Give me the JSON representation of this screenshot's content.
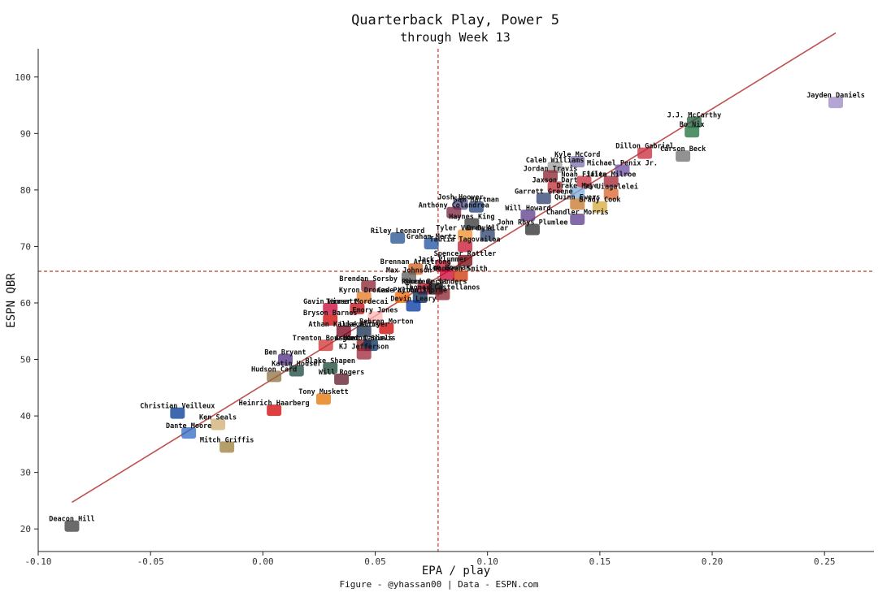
{
  "chart_data": {
    "type": "scatter",
    "title": "Quarterback Play, Power 5",
    "subtitle": "through Week 13",
    "xlabel": "EPA / play",
    "ylabel": "ESPN QBR",
    "caption": "Figure - @yhassan00 | Data - ESPN.com",
    "xlim": [
      -0.1,
      0.272
    ],
    "ylim": [
      16,
      105
    ],
    "xticks": [
      -0.1,
      -0.05,
      0.0,
      0.05,
      0.1,
      0.15,
      0.2,
      0.25
    ],
    "xtick_labels": [
      "-0.10",
      "-0.05",
      "0.00",
      "0.05",
      "0.10",
      "0.15",
      "0.20",
      "0.25"
    ],
    "yticks": [
      20,
      30,
      40,
      50,
      60,
      70,
      80,
      90,
      100
    ],
    "ytick_labels": [
      "20",
      "30",
      "40",
      "50",
      "60",
      "70",
      "80",
      "90",
      "100"
    ],
    "mean_lines": {
      "x": 0.078,
      "y": 65.6,
      "color": "#c0392b"
    },
    "fit_line": {
      "color": "#c0504d",
      "points": [
        [
          -0.085,
          24.7
        ],
        [
          0.255,
          107.8
        ]
      ]
    },
    "points": [
      {
        "name": "Jayden Daniels",
        "x": 0.255,
        "y": 95.5,
        "color": "#9b87c4"
      },
      {
        "name": "J.J. McCarthy",
        "x": 0.192,
        "y": 92.0,
        "color": "#1e5c3a"
      },
      {
        "name": "Bo Nix",
        "x": 0.191,
        "y": 90.3,
        "color": "#1b6e3a"
      },
      {
        "name": "Dillon Gabriel",
        "x": 0.17,
        "y": 86.5,
        "color": "#c62a3a"
      },
      {
        "name": "Carson Beck",
        "x": 0.187,
        "y": 86.0,
        "color": "#6e6e6e"
      },
      {
        "name": "Kyle McCord",
        "x": 0.14,
        "y": 85.0,
        "color": "#7d6fa8"
      },
      {
        "name": "Caleb Williams",
        "x": 0.13,
        "y": 84.0,
        "color": "#9e9e9e"
      },
      {
        "name": "Michael Penix Jr.",
        "x": 0.16,
        "y": 83.5,
        "color": "#6b4fa0"
      },
      {
        "name": "Jordan Travis",
        "x": 0.128,
        "y": 82.5,
        "color": "#8a1f2b"
      },
      {
        "name": "Noah Fifita",
        "x": 0.143,
        "y": 81.5,
        "color": "#c72b3a"
      },
      {
        "name": "Jalen Milroe",
        "x": 0.155,
        "y": 81.5,
        "color": "#a3222f"
      },
      {
        "name": "Jaxson Dart",
        "x": 0.13,
        "y": 80.5,
        "color": "#c22a33"
      },
      {
        "name": "Drake Maye",
        "x": 0.14,
        "y": 79.5,
        "color": "#7aaedb"
      },
      {
        "name": "DJ Uiagalelei",
        "x": 0.155,
        "y": 79.3,
        "color": "#d8622a"
      },
      {
        "name": "Garrett Greene",
        "x": 0.125,
        "y": 78.5,
        "color": "#2b3f6e"
      },
      {
        "name": "Quinn Ewers",
        "x": 0.14,
        "y": 77.5,
        "color": "#c6762a"
      },
      {
        "name": "Brady Cook",
        "x": 0.15,
        "y": 77.0,
        "color": "#d4a93a"
      },
      {
        "name": "Josh Hoover",
        "x": 0.088,
        "y": 77.5,
        "color": "#4d4d8a"
      },
      {
        "name": "Sam Hartman",
        "x": 0.095,
        "y": 77.0,
        "color": "#1f3e7a"
      },
      {
        "name": "Anthony Colandrea",
        "x": 0.085,
        "y": 76.0,
        "color": "#7a1f3a"
      },
      {
        "name": "Will Howard",
        "x": 0.118,
        "y": 75.5,
        "color": "#5a3a8a"
      },
      {
        "name": "Chandler Morris",
        "x": 0.14,
        "y": 74.8,
        "color": "#5a3a8a"
      },
      {
        "name": "Haynes King",
        "x": 0.093,
        "y": 74.0,
        "color": "#333333"
      },
      {
        "name": "John Rhys Plumlee",
        "x": 0.12,
        "y": 73.0,
        "color": "#2a2a2a"
      },
      {
        "name": "Tyler Van Dyke",
        "x": 0.09,
        "y": 72.0,
        "color": "#f28e2b"
      },
      {
        "name": "Drew Allar",
        "x": 0.1,
        "y": 72.0,
        "color": "#2a3f6e"
      },
      {
        "name": "Riley Leonard",
        "x": 0.06,
        "y": 71.5,
        "color": "#1f4f8f"
      },
      {
        "name": "Graham Mertz",
        "x": 0.075,
        "y": 70.5,
        "color": "#1a4fa0"
      },
      {
        "name": "Taulia Tagovailoa",
        "x": 0.09,
        "y": 70.0,
        "color": "#c8102e"
      },
      {
        "name": "Spencer Rattler",
        "x": 0.09,
        "y": 67.5,
        "color": "#73000a"
      },
      {
        "name": "Brennan Armstrong",
        "x": 0.068,
        "y": 66.0,
        "color": "#d45a1a"
      },
      {
        "name": "Jack Plummer",
        "x": 0.08,
        "y": 66.5,
        "color": "#c8102e"
      },
      {
        "name": "Max Johnson",
        "x": 0.065,
        "y": 64.5,
        "color": "#5a5a5a"
      },
      {
        "name": "Alan Bowman",
        "x": 0.082,
        "y": 65.0,
        "color": "#cc0033"
      },
      {
        "name": "Donovan Smith",
        "x": 0.088,
        "y": 64.8,
        "color": "#cc3300"
      },
      {
        "name": "Rocco Becht",
        "x": 0.072,
        "y": 62.5,
        "color": "#c8102e"
      },
      {
        "name": "Shedeur Sanders",
        "x": 0.077,
        "y": 62.5,
        "color": "#000000"
      },
      {
        "name": "Brendan Sorsby",
        "x": 0.047,
        "y": 63.0,
        "color": "#8a1f2b"
      },
      {
        "name": "Cade Klubnik",
        "x": 0.062,
        "y": 61.0,
        "color": "#f56600"
      },
      {
        "name": "Payton Thorne",
        "x": 0.07,
        "y": 61.0,
        "color": "#03244d"
      },
      {
        "name": "Thomas Castellanos",
        "x": 0.08,
        "y": 61.5,
        "color": "#8a1f2b"
      },
      {
        "name": "Kyron Drones",
        "x": 0.045,
        "y": 61.0,
        "color": "#e5751f"
      },
      {
        "name": "Devin Leary",
        "x": 0.067,
        "y": 59.5,
        "color": "#0033a0"
      },
      {
        "name": "Gavin Wimsatt",
        "x": 0.03,
        "y": 59.0,
        "color": "#cc0033"
      },
      {
        "name": "Tanner Mordecai",
        "x": 0.042,
        "y": 59.0,
        "color": "#c5050c"
      },
      {
        "name": "Emory Jones",
        "x": 0.05,
        "y": 57.5,
        "color": "#ffb3b3"
      },
      {
        "name": "Bryson Barnes",
        "x": 0.03,
        "y": 57.0,
        "color": "#cc0000"
      },
      {
        "name": "Behren Morton",
        "x": 0.055,
        "y": 55.5,
        "color": "#cc0000"
      },
      {
        "name": "Luke Altmyer",
        "x": 0.045,
        "y": 55.0,
        "color": "#13294b"
      },
      {
        "name": "Athan Kaliakmanis",
        "x": 0.036,
        "y": 55.0,
        "color": "#7a0019"
      },
      {
        "name": "Trenton Bourguet",
        "x": 0.028,
        "y": 52.5,
        "color": "#cc3333"
      },
      {
        "name": "Ashton Daniels",
        "x": 0.045,
        "y": 52.5,
        "color": "#8c1515"
      },
      {
        "name": "Kedon Slovis",
        "x": 0.048,
        "y": 52.5,
        "color": "#002e5d"
      },
      {
        "name": "KJ Jefferson",
        "x": 0.045,
        "y": 51.0,
        "color": "#9d2235"
      },
      {
        "name": "Ben Bryant",
        "x": 0.01,
        "y": 50.0,
        "color": "#4e2a84"
      },
      {
        "name": "Katin Houser",
        "x": 0.015,
        "y": 48.0,
        "color": "#18453b"
      },
      {
        "name": "Blake Shapen",
        "x": 0.03,
        "y": 48.5,
        "color": "#154734"
      },
      {
        "name": "Hudson Card",
        "x": 0.005,
        "y": 47.0,
        "color": "#8e6f3e"
      },
      {
        "name": "Will Rogers",
        "x": 0.035,
        "y": 46.5,
        "color": "#5d1725"
      },
      {
        "name": "Tony Muskett",
        "x": 0.027,
        "y": 43.0,
        "color": "#e57200"
      },
      {
        "name": "Heinrich Haarberg",
        "x": 0.005,
        "y": 41.0,
        "color": "#d00000"
      },
      {
        "name": "Christian Veilleux",
        "x": -0.038,
        "y": 40.5,
        "color": "#003594"
      },
      {
        "name": "Ken Seals",
        "x": -0.02,
        "y": 38.5,
        "color": "#cfae70"
      },
      {
        "name": "Dante Moore",
        "x": -0.033,
        "y": 37.0,
        "color": "#2d68c4"
      },
      {
        "name": "Mitch Griffis",
        "x": -0.016,
        "y": 34.5,
        "color": "#9e7e38"
      },
      {
        "name": "Deacon Hill",
        "x": -0.085,
        "y": 20.5,
        "color": "#3a3a3a"
      }
    ]
  }
}
